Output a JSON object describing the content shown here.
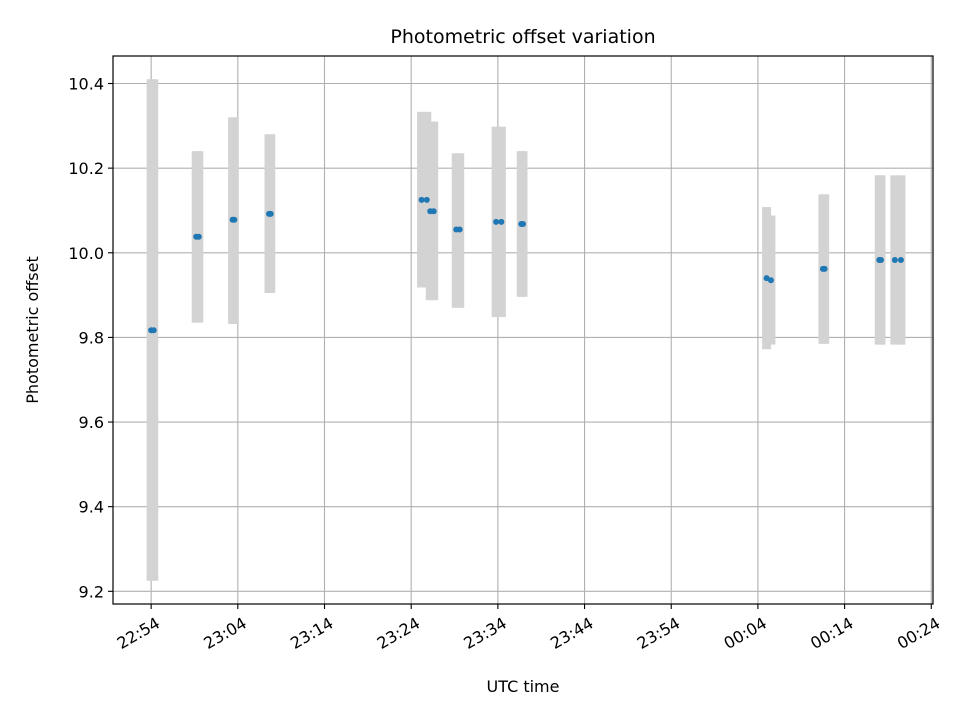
{
  "chart_data": {
    "type": "scatter",
    "title": "Photometric offset variation",
    "xlabel": "UTC time",
    "ylabel": "Photometric offset",
    "x_ticks": [
      "22:54",
      "23:04",
      "23:14",
      "23:24",
      "23:34",
      "23:44",
      "23:54",
      "00:04",
      "00:14",
      "00:24"
    ],
    "y_ticks": [
      "9.2",
      "9.4",
      "9.6",
      "9.8",
      "10.0",
      "10.2",
      "10.4"
    ],
    "ylim": [
      9.17,
      10.465
    ],
    "xlim": [
      "22:49:36",
      "00:24:12"
    ],
    "grid": true,
    "colors": {
      "point": "#1f77b4",
      "error_bar": "#d3d3d3",
      "grid": "#b0b0b0"
    },
    "series": [
      {
        "points": [
          {
            "time": "22:54:00",
            "value": 9.817,
            "low": 9.225,
            "high": 10.41
          },
          {
            "time": "22:54:18",
            "value": 9.817,
            "low": 9.225,
            "high": 10.41
          },
          {
            "time": "22:59:12",
            "value": 10.038,
            "low": 9.835,
            "high": 10.24
          },
          {
            "time": "22:59:30",
            "value": 10.038,
            "low": 9.835,
            "high": 10.24
          },
          {
            "time": "23:03:24",
            "value": 10.078,
            "low": 9.832,
            "high": 10.32
          },
          {
            "time": "23:03:36",
            "value": 10.078,
            "low": 9.832,
            "high": 10.32
          },
          {
            "time": "23:07:36",
            "value": 10.092,
            "low": 9.905,
            "high": 10.28
          },
          {
            "time": "23:07:48",
            "value": 10.092,
            "low": 9.905,
            "high": 10.28
          },
          {
            "time": "23:25:12",
            "value": 10.125,
            "low": 9.918,
            "high": 10.333
          },
          {
            "time": "23:25:48",
            "value": 10.125,
            "low": 9.918,
            "high": 10.333
          },
          {
            "time": "23:26:12",
            "value": 10.098,
            "low": 9.888,
            "high": 10.31
          },
          {
            "time": "23:26:36",
            "value": 10.098,
            "low": 9.888,
            "high": 10.31
          },
          {
            "time": "23:29:12",
            "value": 10.055,
            "low": 9.87,
            "high": 10.235
          },
          {
            "time": "23:29:36",
            "value": 10.055,
            "low": 9.87,
            "high": 10.235
          },
          {
            "time": "23:33:48",
            "value": 10.073,
            "low": 9.848,
            "high": 10.298
          },
          {
            "time": "23:34:24",
            "value": 10.073,
            "low": 9.848,
            "high": 10.298
          },
          {
            "time": "23:36:42",
            "value": 10.068,
            "low": 9.896,
            "high": 10.24
          },
          {
            "time": "23:36:54",
            "value": 10.068,
            "low": 9.896,
            "high": 10.24
          },
          {
            "time": "00:05:00",
            "value": 9.94,
            "low": 9.772,
            "high": 10.108
          },
          {
            "time": "00:05:30",
            "value": 9.935,
            "low": 9.783,
            "high": 10.088
          },
          {
            "time": "00:11:30",
            "value": 9.962,
            "low": 9.785,
            "high": 10.138
          },
          {
            "time": "00:11:42",
            "value": 9.962,
            "low": 9.785,
            "high": 10.138
          },
          {
            "time": "00:18:00",
            "value": 9.983,
            "low": 9.783,
            "high": 10.183
          },
          {
            "time": "00:18:12",
            "value": 9.983,
            "low": 9.783,
            "high": 10.183
          },
          {
            "time": "00:19:48",
            "value": 9.983,
            "low": 9.783,
            "high": 10.183
          },
          {
            "time": "00:20:30",
            "value": 9.983,
            "low": 9.783,
            "high": 10.183
          }
        ]
      }
    ]
  }
}
